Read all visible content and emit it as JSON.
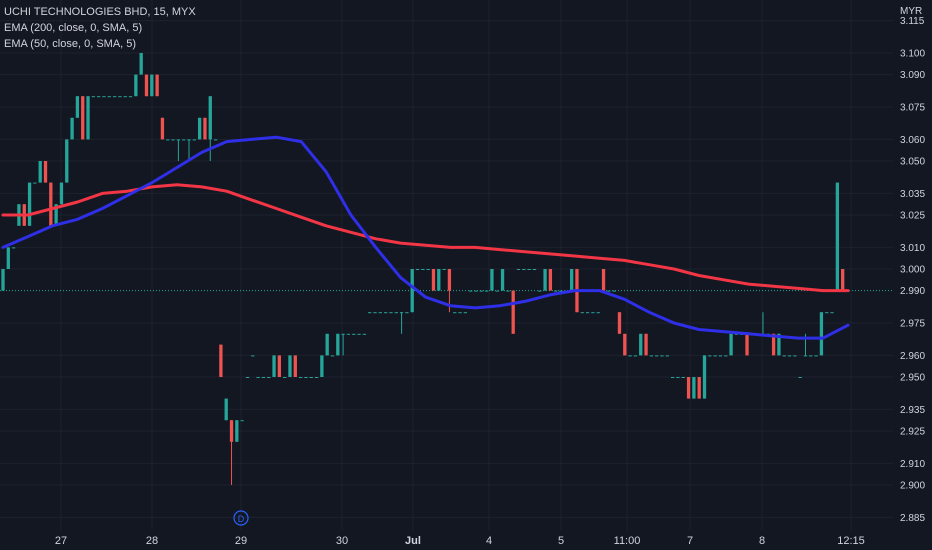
{
  "chart_data": {
    "type": "candlestick",
    "title": "UCHI TECHNOLOGIES BHD, 15, MYX",
    "currency": "MYR",
    "indicators": [
      "EMA (200, close, 0, SMA, 5)",
      "EMA (50, close, 0, SMA, 5)"
    ],
    "current_price": "2.990",
    "ylim": [
      2.88,
      3.12
    ],
    "y_ticks": [
      "3.115",
      "3.100",
      "3.090",
      "3.075",
      "3.060",
      "3.050",
      "3.035",
      "3.025",
      "3.010",
      "3.000",
      "2.990",
      "2.975",
      "2.960",
      "2.950",
      "2.935",
      "2.925",
      "2.910",
      "2.900",
      "2.885"
    ],
    "x_ticks": [
      {
        "label": "27",
        "bold": false
      },
      {
        "label": "28",
        "bold": false
      },
      {
        "label": "29",
        "bold": false
      },
      {
        "label": "30",
        "bold": false
      },
      {
        "label": "Jul",
        "bold": true
      },
      {
        "label": "4",
        "bold": false
      },
      {
        "label": "5",
        "bold": false
      },
      {
        "label": "11:00",
        "bold": false
      },
      {
        "label": "7",
        "bold": false
      },
      {
        "label": "8",
        "bold": false
      },
      {
        "label": "12:15",
        "bold": false
      }
    ],
    "dividend_marker": "D",
    "colors": {
      "up": "#26a69a",
      "down": "#ef5350",
      "ema200": "#f23645",
      "ema50": "#2f2fe8",
      "background": "#131722",
      "grid": "#1e222d"
    },
    "candles": [
      [
        2.99,
        3.0,
        2.99,
        3.0
      ],
      [
        3.0,
        3.01,
        3.0,
        3.01
      ],
      [
        3.01,
        3.01,
        3.01,
        3.01
      ],
      [
        3.02,
        3.03,
        3.02,
        3.03
      ],
      [
        3.03,
        3.03,
        3.02,
        3.02
      ],
      [
        3.02,
        3.04,
        3.02,
        3.04
      ],
      [
        3.04,
        3.04,
        3.04,
        3.04
      ],
      [
        3.04,
        3.05,
        3.04,
        3.05
      ],
      [
        3.05,
        3.05,
        3.04,
        3.04
      ],
      [
        3.04,
        3.04,
        3.02,
        3.02
      ],
      [
        3.02,
        3.03,
        3.02,
        3.03
      ],
      [
        3.03,
        3.04,
        3.03,
        3.04
      ],
      [
        3.04,
        3.06,
        3.04,
        3.06
      ],
      [
        3.06,
        3.07,
        3.06,
        3.07
      ],
      [
        3.07,
        3.08,
        3.07,
        3.08
      ],
      [
        3.08,
        3.08,
        3.06,
        3.06
      ],
      [
        3.06,
        3.08,
        3.06,
        3.08
      ],
      [
        3.08,
        3.08,
        3.08,
        3.08
      ],
      [
        3.08,
        3.08,
        3.08,
        3.08
      ],
      [
        3.08,
        3.08,
        3.08,
        3.08
      ],
      [
        3.08,
        3.08,
        3.08,
        3.08
      ],
      [
        3.08,
        3.08,
        3.08,
        3.08
      ],
      [
        3.08,
        3.08,
        3.08,
        3.08
      ],
      [
        3.08,
        3.08,
        3.08,
        3.08
      ],
      [
        3.08,
        3.08,
        3.08,
        3.08
      ],
      [
        3.08,
        3.09,
        3.08,
        3.09
      ],
      [
        3.09,
        3.1,
        3.09,
        3.1
      ],
      [
        3.09,
        3.09,
        3.08,
        3.08
      ],
      [
        3.08,
        3.09,
        3.08,
        3.09
      ],
      [
        3.09,
        3.09,
        3.08,
        3.08
      ],
      [
        3.07,
        3.07,
        3.06,
        3.06
      ],
      [
        3.06,
        3.06,
        3.06,
        3.06
      ],
      [
        3.06,
        3.06,
        3.06,
        3.06
      ],
      [
        3.06,
        3.06,
        3.05,
        3.06
      ],
      [
        3.06,
        3.06,
        3.06,
        3.06
      ],
      [
        3.06,
        3.06,
        3.05,
        3.06
      ],
      [
        3.06,
        3.06,
        3.06,
        3.06
      ],
      [
        3.06,
        3.07,
        3.06,
        3.07
      ],
      [
        3.07,
        3.07,
        3.06,
        3.06
      ],
      [
        3.06,
        3.08,
        3.05,
        3.08
      ],
      [
        3.06,
        3.06,
        3.06,
        3.06
      ],
      [
        2.965,
        2.965,
        2.95,
        2.95
      ],
      [
        2.93,
        2.94,
        2.93,
        2.94
      ],
      [
        2.93,
        2.93,
        2.9,
        2.92
      ],
      [
        2.92,
        2.93,
        2.92,
        2.93
      ],
      [
        2.93,
        2.93,
        2.93,
        2.93
      ],
      [
        2.95,
        2.95,
        2.95,
        2.95
      ],
      [
        2.96,
        2.96,
        2.96,
        2.96
      ],
      [
        2.95,
        2.95,
        2.95,
        2.95
      ],
      [
        2.95,
        2.95,
        2.95,
        2.95
      ],
      [
        2.95,
        2.95,
        2.95,
        2.95
      ],
      [
        2.95,
        2.96,
        2.95,
        2.96
      ],
      [
        2.96,
        2.96,
        2.95,
        2.95
      ],
      [
        2.95,
        2.95,
        2.95,
        2.95
      ],
      [
        2.95,
        2.96,
        2.95,
        2.96
      ],
      [
        2.96,
        2.96,
        2.95,
        2.95
      ],
      [
        2.95,
        2.95,
        2.95,
        2.95
      ],
      [
        2.95,
        2.95,
        2.95,
        2.95
      ],
      [
        2.95,
        2.95,
        2.95,
        2.95
      ],
      [
        2.95,
        2.95,
        2.95,
        2.95
      ],
      [
        2.95,
        2.96,
        2.95,
        2.96
      ],
      [
        2.96,
        2.97,
        2.96,
        2.97
      ],
      [
        2.96,
        2.96,
        2.96,
        2.96
      ],
      [
        2.96,
        2.97,
        2.96,
        2.97
      ],
      [
        2.97,
        2.97,
        2.96,
        2.97
      ],
      [
        2.97,
        2.97,
        2.97,
        2.97
      ],
      [
        2.97,
        2.97,
        2.97,
        2.97
      ],
      [
        2.97,
        2.97,
        2.97,
        2.97
      ],
      [
        2.97,
        2.97,
        2.97,
        2.97
      ],
      [
        2.98,
        2.98,
        2.98,
        2.98
      ],
      [
        2.98,
        2.98,
        2.98,
        2.98
      ],
      [
        2.98,
        2.98,
        2.98,
        2.98
      ],
      [
        2.98,
        2.98,
        2.98,
        2.98
      ],
      [
        2.98,
        2.98,
        2.98,
        2.98
      ],
      [
        2.98,
        2.98,
        2.98,
        2.98
      ],
      [
        2.98,
        2.98,
        2.97,
        2.98
      ],
      [
        2.98,
        2.98,
        2.98,
        2.98
      ],
      [
        2.98,
        3.0,
        2.98,
        3.0
      ],
      [
        3.0,
        3.0,
        3.0,
        3.0
      ],
      [
        3.0,
        3.0,
        3.0,
        3.0
      ],
      [
        3.0,
        3.0,
        3.0,
        3.0
      ],
      [
        3.0,
        3.0,
        2.99,
        2.99
      ],
      [
        2.99,
        3.0,
        2.99,
        3.0
      ],
      [
        3.0,
        3.0,
        3.0,
        3.0
      ],
      [
        3.0,
        3.0,
        2.98,
        2.99
      ],
      [
        2.98,
        2.98,
        2.98,
        2.98
      ],
      [
        2.98,
        2.98,
        2.98,
        2.98
      ],
      [
        2.98,
        2.98,
        2.98,
        2.98
      ],
      [
        2.99,
        2.99,
        2.99,
        2.99
      ],
      [
        2.99,
        2.99,
        2.99,
        2.99
      ],
      [
        2.99,
        2.99,
        2.99,
        2.99
      ],
      [
        2.99,
        2.99,
        2.99,
        2.99
      ],
      [
        2.99,
        3.0,
        2.99,
        3.0
      ],
      [
        2.99,
        2.99,
        2.99,
        2.99
      ],
      [
        2.99,
        3.0,
        2.99,
        3.0
      ],
      [
        2.99,
        2.99,
        2.99,
        2.99
      ],
      [
        2.99,
        2.99,
        2.97,
        2.97
      ],
      [
        3.0,
        3.0,
        3.0,
        3.0
      ],
      [
        3.0,
        3.0,
        3.0,
        3.0
      ],
      [
        3.0,
        3.0,
        3.0,
        3.0
      ],
      [
        3.0,
        3.0,
        3.0,
        3.0
      ],
      [
        2.99,
        2.99,
        2.99,
        2.99
      ],
      [
        2.99,
        3.0,
        2.99,
        3.0
      ],
      [
        3.0,
        3.0,
        2.99,
        2.99
      ],
      [
        2.99,
        2.99,
        2.99,
        2.99
      ],
      [
        2.99,
        2.99,
        2.99,
        2.99
      ],
      [
        2.99,
        2.99,
        2.99,
        2.99
      ],
      [
        2.99,
        3.0,
        2.99,
        3.0
      ],
      [
        3.0,
        3.0,
        2.98,
        2.98
      ],
      [
        2.98,
        2.98,
        2.98,
        2.98
      ],
      [
        2.98,
        2.98,
        2.98,
        2.98
      ],
      [
        2.98,
        2.98,
        2.98,
        2.98
      ],
      [
        2.98,
        2.98,
        2.98,
        2.98
      ],
      [
        3.0,
        3.0,
        2.99,
        2.99
      ],
      [
        2.99,
        2.99,
        2.99,
        2.99
      ],
      [
        2.99,
        2.99,
        2.99,
        2.99
      ],
      [
        2.98,
        2.98,
        2.97,
        2.97
      ],
      [
        2.97,
        2.97,
        2.96,
        2.96
      ],
      [
        2.96,
        2.96,
        2.96,
        2.96
      ],
      [
        2.96,
        2.96,
        2.96,
        2.96
      ],
      [
        2.96,
        2.97,
        2.96,
        2.97
      ],
      [
        2.97,
        2.97,
        2.96,
        2.96
      ],
      [
        2.96,
        2.96,
        2.96,
        2.96
      ],
      [
        2.96,
        2.96,
        2.96,
        2.96
      ],
      [
        2.96,
        2.96,
        2.96,
        2.96
      ],
      [
        2.96,
        2.96,
        2.96,
        2.96
      ],
      [
        2.95,
        2.95,
        2.95,
        2.95
      ],
      [
        2.95,
        2.95,
        2.95,
        2.95
      ],
      [
        2.95,
        2.95,
        2.95,
        2.95
      ],
      [
        2.95,
        2.95,
        2.94,
        2.94
      ],
      [
        2.94,
        2.95,
        2.94,
        2.95
      ],
      [
        2.95,
        2.95,
        2.94,
        2.94
      ],
      [
        2.94,
        2.96,
        2.94,
        2.96
      ],
      [
        2.96,
        2.96,
        2.96,
        2.96
      ],
      [
        2.96,
        2.96,
        2.96,
        2.96
      ],
      [
        2.96,
        2.96,
        2.96,
        2.96
      ],
      [
        2.96,
        2.96,
        2.96,
        2.96
      ],
      [
        2.96,
        2.97,
        2.96,
        2.97
      ],
      [
        2.97,
        2.97,
        2.97,
        2.97
      ],
      [
        2.97,
        2.97,
        2.97,
        2.97
      ],
      [
        2.97,
        2.97,
        2.96,
        2.96
      ],
      [
        2.97,
        2.97,
        2.97,
        2.97
      ],
      [
        2.97,
        2.97,
        2.97,
        2.97
      ],
      [
        2.97,
        2.98,
        2.97,
        2.97
      ],
      [
        2.97,
        2.97,
        2.97,
        2.97
      ],
      [
        2.97,
        2.97,
        2.96,
        2.96
      ],
      [
        2.96,
        2.97,
        2.96,
        2.97
      ],
      [
        2.96,
        2.96,
        2.96,
        2.96
      ],
      [
        2.96,
        2.96,
        2.96,
        2.96
      ],
      [
        2.96,
        2.96,
        2.96,
        2.96
      ],
      [
        2.95,
        2.95,
        2.95,
        2.95
      ],
      [
        2.96,
        2.97,
        2.96,
        2.96
      ],
      [
        2.96,
        2.96,
        2.96,
        2.96
      ],
      [
        2.96,
        2.96,
        2.96,
        2.96
      ],
      [
        2.96,
        2.98,
        2.96,
        2.98
      ],
      [
        2.98,
        2.98,
        2.98,
        2.98
      ],
      [
        2.98,
        2.98,
        2.98,
        2.98
      ],
      [
        2.99,
        3.04,
        2.99,
        3.04
      ],
      [
        3.0,
        3.0,
        2.99,
        2.99
      ],
      [
        2.99,
        2.99,
        2.99,
        2.99
      ]
    ],
    "series": [
      {
        "name": "EMA (200, close, 0, SMA, 5)",
        "values": [
          3.025,
          3.025,
          3.028,
          3.031,
          3.035,
          3.036,
          3.038,
          3.039,
          3.038,
          3.036,
          3.032,
          3.028,
          3.024,
          3.02,
          3.017,
          3.014,
          3.012,
          3.011,
          3.01,
          3.01,
          3.009,
          3.008,
          3.007,
          3.006,
          3.005,
          3.004,
          3.002,
          3.0,
          2.997,
          2.995,
          2.993,
          2.992,
          2.991,
          2.99,
          2.99
        ]
      },
      {
        "name": "EMA (50, close, 0, SMA, 5)",
        "values": [
          3.01,
          3.015,
          3.02,
          3.023,
          3.028,
          3.034,
          3.04,
          3.047,
          3.054,
          3.059,
          3.06,
          3.061,
          3.059,
          3.045,
          3.025,
          3.01,
          2.996,
          2.987,
          2.983,
          2.982,
          2.983,
          2.985,
          2.988,
          2.99,
          2.99,
          2.986,
          2.98,
          2.975,
          2.972,
          2.971,
          2.97,
          2.969,
          2.968,
          2.968,
          2.974
        ]
      }
    ]
  }
}
